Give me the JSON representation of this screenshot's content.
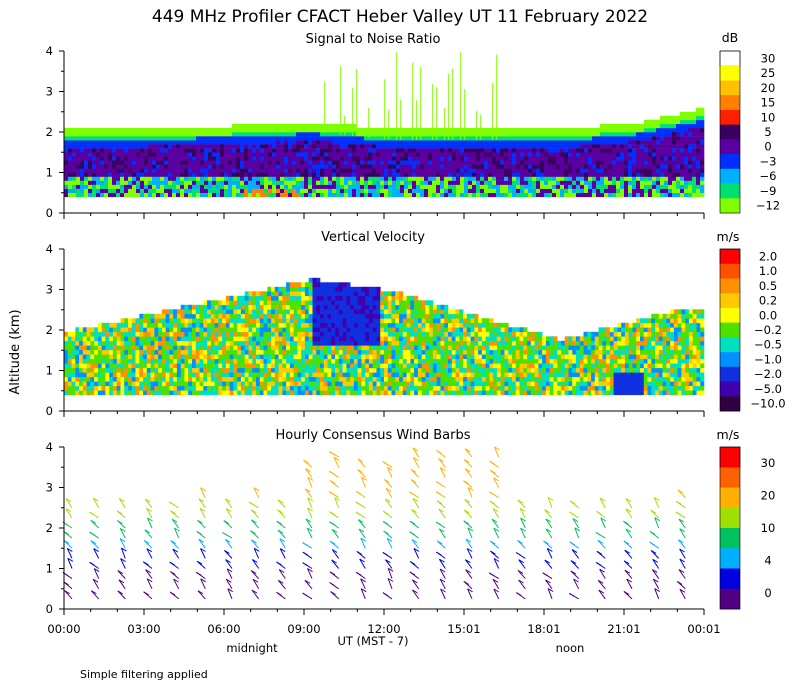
{
  "title": "449 MHz Profiler CFACT Heber Valley UT 11 February 2022",
  "y_axis_label": "Altitude (km)",
  "x_axis": {
    "label": "UT  (MST - 7)",
    "ticks": [
      "00:00",
      "03:00",
      "06:00",
      "09:00",
      "12:00",
      "15:01",
      "18:01",
      "21:01",
      "00:01"
    ],
    "secondary_labels": [
      "midnight",
      "noon"
    ]
  },
  "footnote": "Simple filtering applied",
  "panels": [
    {
      "name": "Signal to Noise Ratio",
      "unit": "dB",
      "colorbar_labels": [
        "30",
        "25",
        "20",
        "15",
        "10",
        "5",
        "0",
        "−3",
        "−6",
        "−9",
        "−12"
      ],
      "colors": [
        "#ffffff",
        "#ffff00",
        "#ffc000",
        "#ff8000",
        "#ff2000",
        "#3a0060",
        "#5a00a0",
        "#0030ff",
        "#00b0ff",
        "#00e070",
        "#80ff00"
      ]
    },
    {
      "name": "Vertical Velocity",
      "unit": "m/s",
      "colorbar_labels": [
        "2.0",
        "1.0",
        "0.5",
        "0.2",
        "0.0",
        "−0.2",
        "−0.5",
        "−1.0",
        "−2.0",
        "−5.0",
        "−10.0"
      ],
      "colors": [
        "#ff0000",
        "#ff5000",
        "#ff9000",
        "#ffc800",
        "#ffff00",
        "#50e000",
        "#00e0c0",
        "#0090ff",
        "#1030e0",
        "#4000b0",
        "#300040"
      ]
    },
    {
      "name": "Hourly Consensus Wind Barbs",
      "unit": "m/s",
      "colorbar_labels": [
        "30",
        "20",
        "10",
        "4",
        "0"
      ],
      "colors": [
        "#ff0000",
        "#ff6000",
        "#ffb000",
        "#a0e000",
        "#00c060",
        "#00b0ff",
        "#0000e0",
        "#500080"
      ]
    }
  ],
  "chart_data": {
    "type": "heatmap",
    "title": "449 MHz Profiler CFACT Heber Valley UT 11 February 2022",
    "xlabel": "UT  (MST - 7)",
    "ylabel": "Altitude (km)",
    "x_range_hours": [
      0,
      24
    ],
    "y_range_km": [
      0,
      4
    ],
    "y_ticks": [
      "0",
      "1",
      "2",
      "3",
      "4"
    ],
    "subplots": [
      {
        "name": "Signal to Noise Ratio",
        "unit": "dB",
        "scale": [
          30,
          25,
          20,
          15,
          10,
          5,
          0,
          -3,
          -6,
          -9,
          -12
        ],
        "approx_echo_top_km": [
          [
            0,
            1.8
          ],
          [
            6,
            1.9
          ],
          [
            9,
            2.0
          ],
          [
            12,
            1.8
          ],
          [
            18,
            1.8
          ],
          [
            21,
            2.0
          ],
          [
            23,
            2.3
          ]
        ],
        "lowest_gate_km": 0.4
      },
      {
        "name": "Vertical Velocity",
        "unit": "m/s",
        "scale": [
          2.0,
          1.0,
          0.5,
          0.2,
          0.0,
          -0.2,
          -0.5,
          -1.0,
          -2.0,
          -5.0,
          -10.0
        ],
        "approx_data_top_km": [
          [
            0,
            1.9
          ],
          [
            9,
            3.2
          ],
          [
            12,
            2.9
          ],
          [
            18,
            1.7
          ],
          [
            22,
            2.4
          ]
        ],
        "lowest_gate_km": 0.4
      },
      {
        "name": "Hourly Consensus Wind Barbs",
        "unit": "m/s",
        "scale": [
          30,
          20,
          10,
          4,
          0
        ],
        "barb_interval_hours": 1,
        "barb_levels_km": [
          0.25,
          0.5,
          0.75,
          1.0,
          1.25,
          1.5,
          1.75,
          2.0,
          2.25,
          2.5,
          2.75,
          3.0,
          3.25,
          3.5,
          3.75
        ]
      }
    ]
  }
}
